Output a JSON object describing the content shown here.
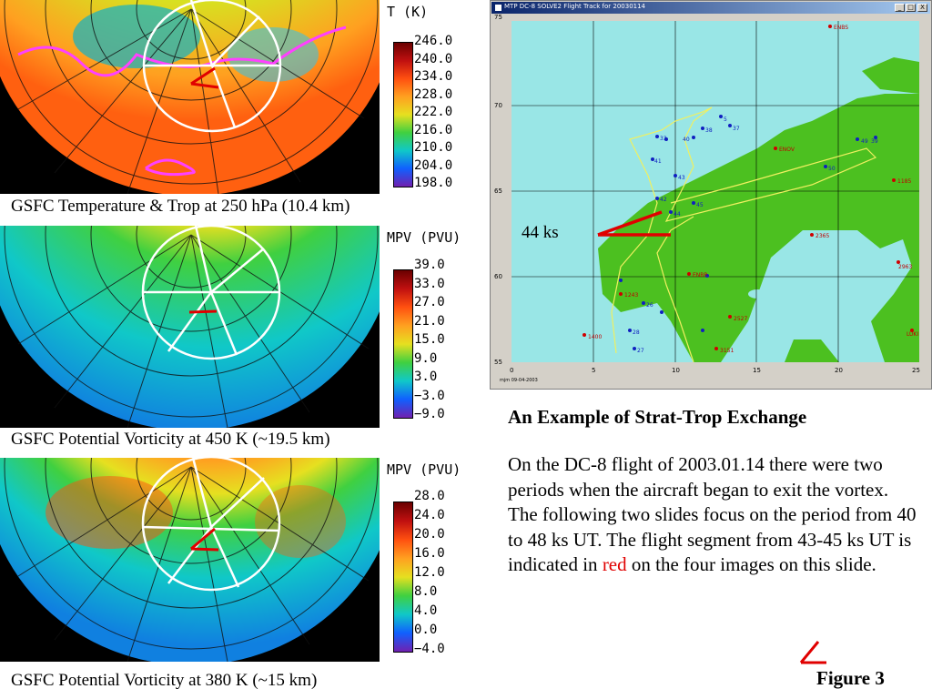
{
  "panels": [
    {
      "caption": "GSFC Temperature & Trop at 250 hPa (10.4 km)",
      "legend_title": "T (K)",
      "ticks": [
        "246.0",
        "240.0",
        "234.0",
        "228.0",
        "222.0",
        "216.0",
        "210.0",
        "204.0",
        "198.0"
      ],
      "gradient": [
        "#6a0000",
        "#c01010",
        "#ff5010",
        "#ffa020",
        "#e6e020",
        "#40d040",
        "#10c8c8",
        "#1060ff",
        "#7020b0"
      ]
    },
    {
      "caption": "GSFC Potential Vorticity at 450 K (~19.5 km)",
      "legend_title": "MPV (PVU)",
      "ticks": [
        "39.0",
        "33.0",
        "27.0",
        "21.0",
        "15.0",
        "9.0",
        "3.0",
        "−3.0",
        "−9.0"
      ],
      "gradient": [
        "#6a0000",
        "#c01010",
        "#ff5010",
        "#ffa020",
        "#e6e020",
        "#40d040",
        "#10c8c8",
        "#1060ff",
        "#7020b0"
      ]
    },
    {
      "caption": "GSFC Potential Vorticity at 380 K (~15 km)",
      "legend_title": "MPV (PVU)",
      "ticks": [
        "28.0",
        "24.0",
        "20.0",
        "16.0",
        "12.0",
        "8.0",
        "4.0",
        "0.0",
        "−4.0"
      ],
      "gradient": [
        "#6a0000",
        "#c01010",
        "#ff5010",
        "#ffa020",
        "#e6e020",
        "#40d040",
        "#10c8c8",
        "#1060ff",
        "#7020b0"
      ]
    }
  ],
  "flight_window": {
    "title": "MTP DC-8 SOLVE2 Flight Track for 20030114",
    "buttons": {
      "minimize": "_",
      "maximize": "□",
      "close": "X"
    },
    "y_ticks": [
      "75",
      "70",
      "65",
      "60",
      "55"
    ],
    "x_ticks": [
      "0",
      "5",
      "10",
      "15",
      "20",
      "25"
    ],
    "credit": "mjm 09-04-2003",
    "station_labels": [
      "ENBS",
      "1185",
      "2365",
      "2963",
      "2527",
      "1400",
      "ENBR",
      "ENOV",
      "1243",
      "LUKI",
      "3151"
    ],
    "track_labels": [
      "5",
      "33",
      "37",
      "38",
      "39",
      "40",
      "41",
      "42",
      "43",
      "44",
      "45",
      "26",
      "27",
      "28",
      "49",
      "50"
    ]
  },
  "ks_label": "44 ks",
  "heading": "An Example of Strat-Trop Exchange",
  "body": {
    "before": "On the DC-8 flight of 2003.01.14 there were two periods when the aircraft began to exit the vortex. The following two slides focus on the period from 40 to 48 ks UT. The flight segment from 43-45 ks UT is indicated in ",
    "red": "red",
    "after": " on the four images on this slide."
  },
  "figure_label": "Figure 3",
  "colors": {
    "segment_red": "#e00000",
    "track_yellow": "#f0f060",
    "land_green": "#4cc020",
    "sea_cyan": "#99e6e6"
  }
}
